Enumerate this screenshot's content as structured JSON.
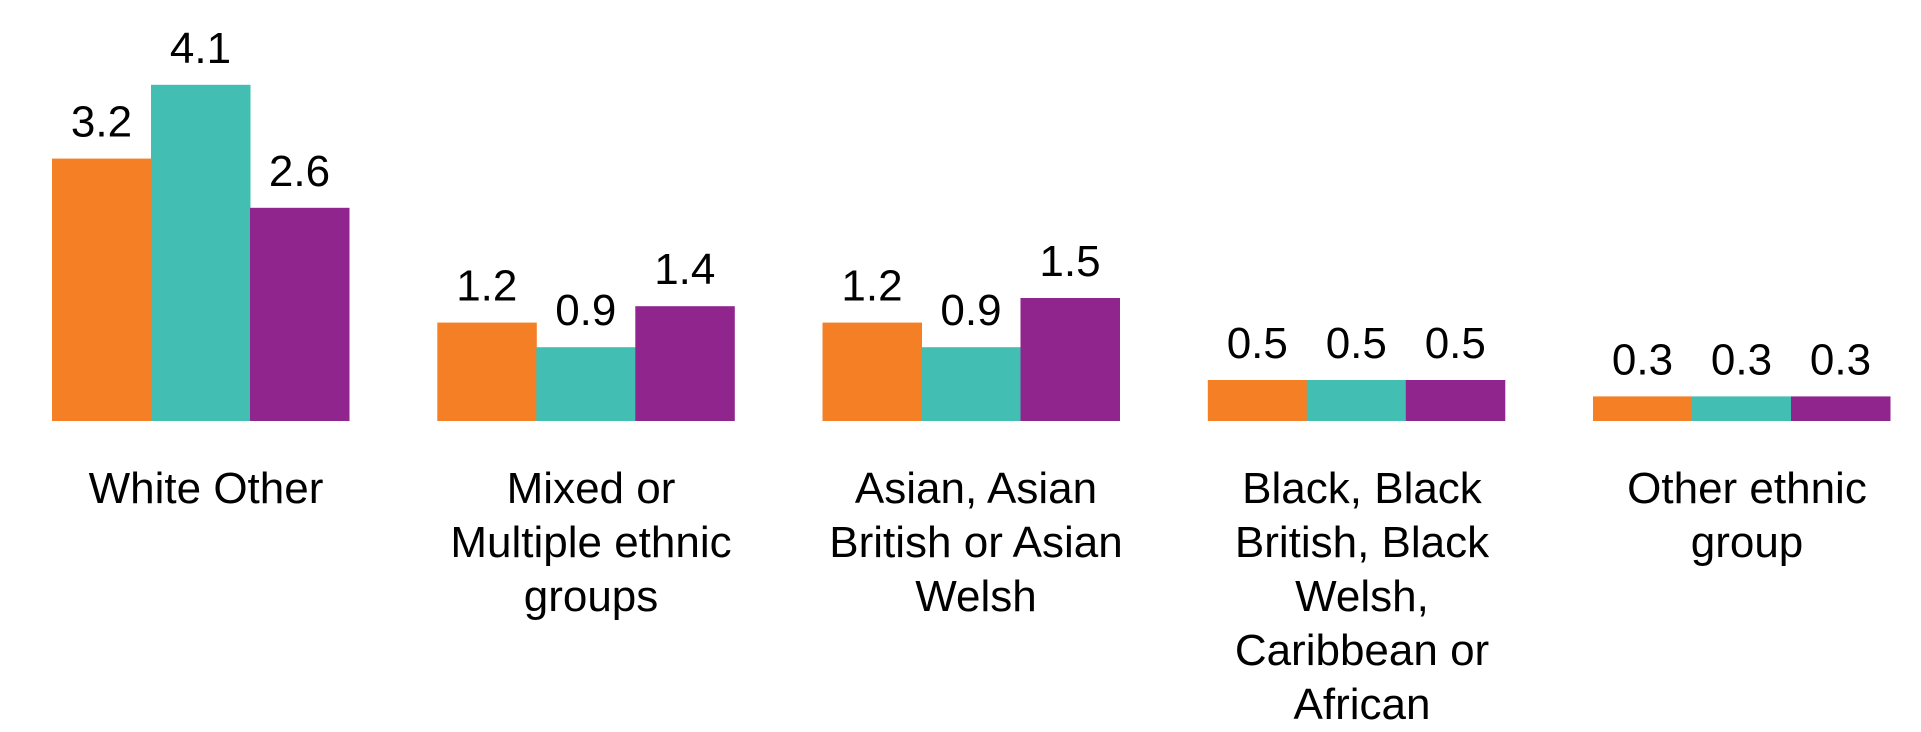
{
  "chart_data": {
    "type": "bar",
    "title": "",
    "xlabel": "",
    "ylabel": "",
    "ylim": [
      0,
      4.1
    ],
    "grid": false,
    "legend": "none",
    "categories": [
      [
        "White Other"
      ],
      [
        "Mixed or",
        "Multiple ethnic",
        "groups"
      ],
      [
        "Asian, Asian",
        "British or Asian",
        "Welsh"
      ],
      [
        "Black, Black",
        "British, Black",
        "Welsh,",
        "Caribbean or",
        "African"
      ],
      [
        "Other ethnic",
        "group"
      ]
    ],
    "series": [
      {
        "color": "#F47F24",
        "values": [
          3.2,
          1.2,
          1.2,
          0.5,
          0.3
        ]
      },
      {
        "color": "#42BFB2",
        "values": [
          4.1,
          0.9,
          0.9,
          0.5,
          0.3
        ]
      },
      {
        "color": "#90268D",
        "values": [
          2.6,
          1.4,
          1.5,
          0.5,
          0.3
        ]
      }
    ],
    "data_labels": [
      [
        "3.2",
        "1.2",
        "1.2",
        "0.5",
        "0.3"
      ],
      [
        "4.1",
        "0.9",
        "0.9",
        "0.5",
        "0.3"
      ],
      [
        "2.6",
        "1.4",
        "1.5",
        "0.5",
        "0.3"
      ]
    ]
  }
}
